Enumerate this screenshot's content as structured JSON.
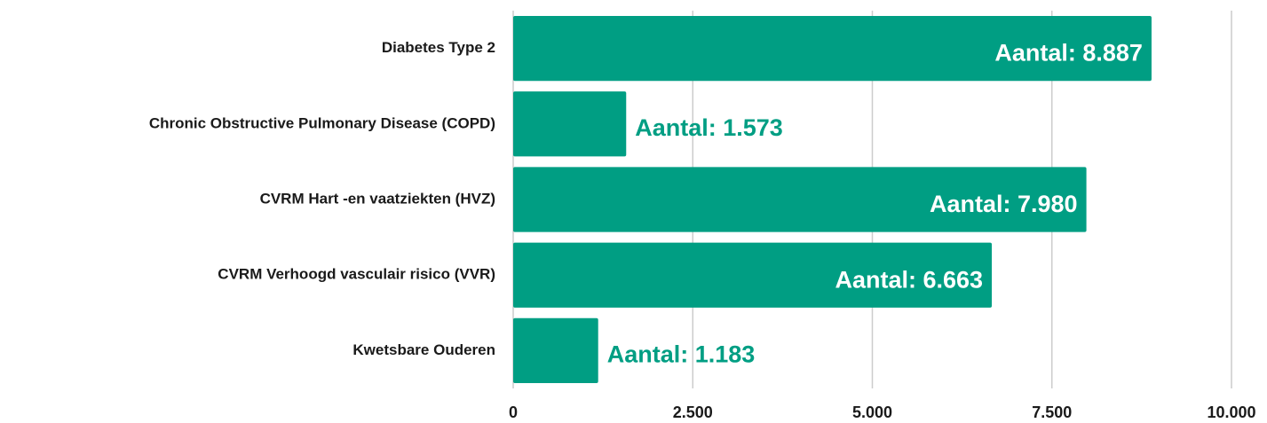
{
  "chart_data": {
    "type": "bar",
    "orientation": "horizontal",
    "categories": [
      "Diabetes Type 2",
      "Chronic Obstructive Pulmonary Disease (COPD)",
      "CVRM Hart -en vaatziekten (HVZ)",
      "CVRM Verhoogd  vasculair risico (VVR)",
      "Kwetsbare  Ouderen"
    ],
    "values": [
      8887,
      1573,
      7980,
      6663,
      1183
    ],
    "value_labels": [
      "Aantal: 8.887",
      "Aantal: 1.573",
      "Aantal: 7.980",
      "Aantal: 6.663",
      "Aantal: 1.183"
    ],
    "color": "#009e83",
    "xlim": [
      0,
      10000
    ],
    "xticks": [
      0,
      {
        "value": 2500,
        "label": "2.500"
      },
      {
        "value": 5000,
        "label": "5.000"
      },
      {
        "value": 7500,
        "label": "7.500"
      },
      {
        "value": 10000,
        "label": "10.000"
      }
    ],
    "grid": true
  }
}
